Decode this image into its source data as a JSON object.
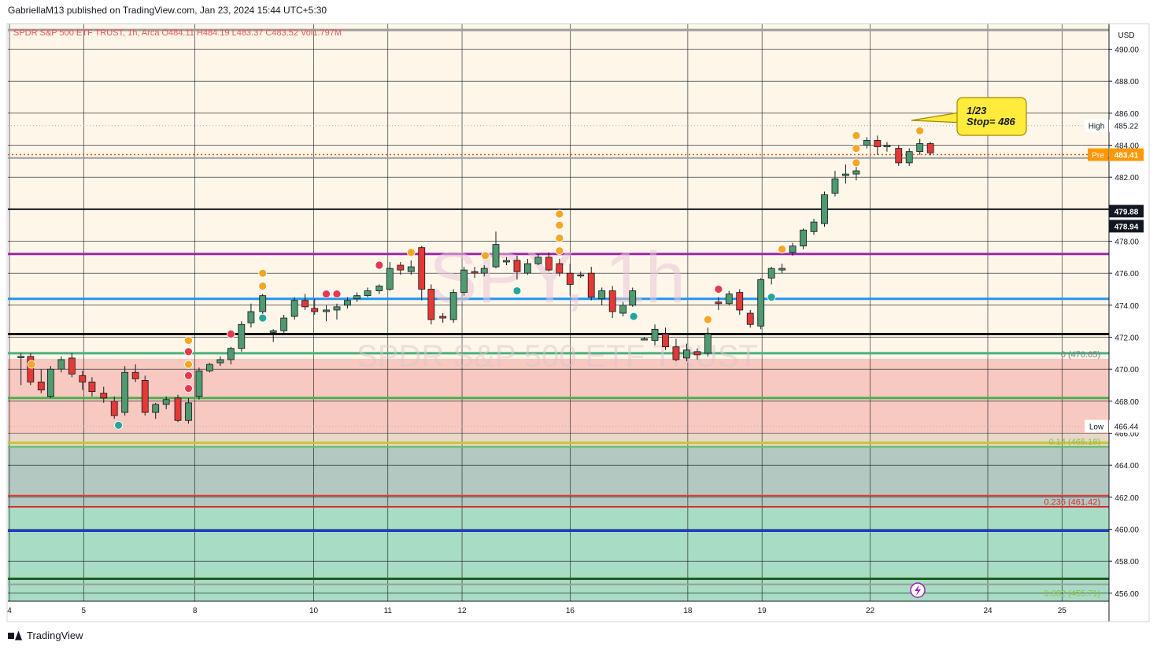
{
  "header": {
    "text": "GabriellaM13 published on TradingView.com, Jan 23, 2024 15:44 UTC+5:30"
  },
  "footer": {
    "brand": "TradingView"
  },
  "chart_data": {
    "type": "candlestick",
    "symbol_line": "SPDR S&P 500 ETF TRUST, 1h, Arca  O484.11  H484.19  L483.37  C483.52  Vol1.797M",
    "watermark_ticker": "SPY, 1h",
    "watermark_name": "SPDR S&P 500 ETF TRUST",
    "currency": "USD",
    "ylim": [
      455.5,
      491.6
    ],
    "xlim": [
      0,
      107
    ],
    "y_ticks": [
      "490.00",
      "488.00",
      "486.00",
      "484.00",
      "482.00",
      "480.00",
      "478.00",
      "476.00",
      "474.00",
      "472.00",
      "470.00",
      "468.00",
      "466.00",
      "464.00",
      "462.00",
      "460.00",
      "458.00",
      "456.00"
    ],
    "x_ticks": [
      {
        "label": "4",
        "x": 0
      },
      {
        "label": "5",
        "x": 7
      },
      {
        "label": "8",
        "x": 17.5
      },
      {
        "label": "10",
        "x": 28.7
      },
      {
        "label": "11",
        "x": 35.7
      },
      {
        "label": "12",
        "x": 42.7
      },
      {
        "label": "16",
        "x": 52.9
      },
      {
        "label": "18",
        "x": 64
      },
      {
        "label": "19",
        "x": 71
      },
      {
        "label": "22",
        "x": 81.2
      },
      {
        "label": "24",
        "x": 92.3
      },
      {
        "label": "25",
        "x": 99.3
      }
    ],
    "price_labels": [
      {
        "name": "High",
        "value": "485.22",
        "y": 485.22,
        "style": "high"
      },
      {
        "name": "Pre",
        "value": "483.41",
        "y": 483.41,
        "style": "pre"
      },
      {
        "name": "",
        "value": "479.88",
        "y": 479.88,
        "style": "dark"
      },
      {
        "name": "",
        "value": "478.94",
        "y": 478.94,
        "style": "dark"
      },
      {
        "name": "Low",
        "value": "466.44",
        "y": 466.44,
        "style": "low"
      }
    ],
    "fib_labels": [
      {
        "text": "0 (470.65)",
        "y": 470.65,
        "color": "#787b86"
      },
      {
        "text": "0.14 (465.18)",
        "y": 465.18,
        "color": "#8bc34a"
      },
      {
        "text": "0.236 (461.42)",
        "y": 461.42,
        "color": "#d32f2f"
      },
      {
        "text": "0.382 (455.71)",
        "y": 455.71,
        "color": "#8bc34a"
      }
    ],
    "callout": {
      "line1": "1/23",
      "line2": "Stop= 486"
    },
    "hlines": [
      {
        "y": 491.2,
        "color": "#9e9e9e",
        "width": 3
      },
      {
        "y": 483.2,
        "color": "#9e9e9e",
        "width": 2
      },
      {
        "y": 480.0,
        "color": "#131722",
        "width": 2
      },
      {
        "y": 477.2,
        "color": "#9c27b0",
        "width": 3
      },
      {
        "y": 474.4,
        "color": "#2196f3",
        "width": 3
      },
      {
        "y": 472.2,
        "color": "#000000",
        "width": 3
      },
      {
        "y": 471.0,
        "color": "#4caf7d",
        "width": 3
      },
      {
        "y": 468.2,
        "color": "#4caf50",
        "width": 3
      },
      {
        "y": 465.4,
        "color": "#c6c43c",
        "width": 3
      },
      {
        "y": 465.15,
        "color": "#66bb6a",
        "width": 2
      },
      {
        "y": 462.1,
        "color": "#e53935",
        "width": 2
      },
      {
        "y": 461.4,
        "color": "#d32f2f",
        "width": 2
      },
      {
        "y": 459.9,
        "color": "#1e3cc8",
        "width": 3
      },
      {
        "y": 456.9,
        "color": "#1b5e20",
        "width": 3
      },
      {
        "y": 456.55,
        "color": "#9e9e9e",
        "width": 2
      }
    ],
    "zones": [
      {
        "y1": 470.65,
        "y2": 466.0,
        "color": "#f7c9c0"
      },
      {
        "y1": 466.0,
        "y2": 465.18,
        "color": "#e8d8c8"
      },
      {
        "y1": 465.18,
        "y2": 461.42,
        "color": "#b3c8c0"
      },
      {
        "y1": 461.42,
        "y2": 455.5,
        "color": "#a8dcc4"
      }
    ],
    "candles": [
      [
        0.2,
        470.8,
        471.0,
        469.0,
        470.8
      ],
      [
        1.1,
        470.8,
        471.0,
        469.0,
        469.2
      ],
      [
        2.1,
        469.2,
        470.0,
        468.5,
        468.7
      ],
      [
        3.0,
        468.3,
        470.2,
        468.2,
        470.0
      ],
      [
        4.0,
        470.0,
        470.8,
        469.8,
        470.6
      ],
      [
        5.0,
        470.7,
        471.0,
        469.5,
        469.7
      ],
      [
        6.0,
        469.6,
        469.9,
        468.7,
        469.2
      ],
      [
        6.9,
        469.2,
        469.5,
        468.3,
        468.6
      ],
      [
        8.0,
        468.5,
        468.9,
        467.9,
        468.2
      ],
      [
        9.0,
        468.0,
        468.3,
        466.9,
        467.1
      ],
      [
        10.0,
        467.3,
        470.2,
        467.1,
        469.8
      ],
      [
        11.0,
        469.8,
        470.3,
        469.2,
        469.4
      ],
      [
        11.9,
        469.3,
        469.6,
        467.1,
        467.3
      ],
      [
        12.9,
        467.3,
        467.9,
        466.9,
        467.8
      ],
      [
        13.9,
        467.8,
        468.3,
        467.5,
        468.1
      ],
      [
        15.0,
        468.2,
        468.4,
        466.7,
        466.8
      ],
      [
        16.0,
        466.8,
        468.2,
        466.6,
        467.9
      ],
      [
        17.0,
        468.3,
        470.1,
        468.1,
        469.9
      ],
      [
        18.0,
        469.9,
        470.4,
        469.8,
        470.3
      ],
      [
        19.0,
        470.4,
        470.8,
        470.2,
        470.6
      ],
      [
        20.0,
        470.6,
        471.4,
        470.3,
        471.3
      ],
      [
        21.0,
        471.3,
        473.0,
        471.1,
        472.8
      ],
      [
        21.9,
        472.9,
        474.1,
        472.6,
        473.6
      ],
      [
        23.0,
        473.6,
        474.7,
        473.3,
        474.6
      ],
      [
        24.0,
        472.3,
        472.5,
        471.7,
        472.4
      ],
      [
        25.0,
        472.4,
        473.4,
        472.2,
        473.2
      ],
      [
        26.0,
        473.3,
        474.5,
        473.1,
        474.3
      ],
      [
        27.0,
        474.3,
        474.7,
        473.7,
        473.9
      ],
      [
        27.9,
        473.8,
        474.4,
        473.4,
        473.6
      ],
      [
        29.0,
        473.6,
        474.0,
        473.0,
        473.7
      ],
      [
        30.0,
        473.7,
        474.1,
        473.1,
        473.9
      ],
      [
        31.0,
        474.0,
        474.5,
        473.8,
        474.3
      ],
      [
        31.9,
        474.4,
        474.8,
        474.2,
        474.6
      ],
      [
        32.9,
        474.6,
        475.1,
        474.5,
        474.9
      ],
      [
        34.0,
        474.9,
        475.3,
        474.7,
        475.2
      ],
      [
        35.0,
        475.0,
        476.7,
        474.9,
        476.3
      ],
      [
        36.0,
        476.5,
        476.7,
        475.9,
        476.2
      ],
      [
        37.0,
        476.1,
        476.8,
        475.9,
        476.4
      ],
      [
        38.0,
        477.6,
        477.7,
        474.3,
        475.0
      ],
      [
        38.9,
        475.0,
        475.3,
        472.8,
        473.1
      ],
      [
        40.0,
        473.3,
        473.5,
        472.9,
        473.2
      ],
      [
        41.0,
        473.1,
        475.0,
        472.9,
        474.8
      ],
      [
        42.0,
        474.8,
        476.4,
        474.6,
        476.2
      ],
      [
        43.0,
        476.1,
        476.4,
        475.7,
        476.0
      ],
      [
        43.9,
        476.0,
        476.5,
        475.8,
        476.3
      ],
      [
        45.0,
        476.4,
        478.6,
        476.3,
        477.8
      ],
      [
        46.0,
        476.7,
        477.0,
        476.5,
        476.8
      ],
      [
        47.0,
        476.8,
        477.1,
        475.6,
        476.1
      ],
      [
        48.0,
        476.0,
        476.9,
        475.9,
        476.6
      ],
      [
        49.0,
        476.6,
        477.2,
        476.5,
        477.0
      ],
      [
        50.0,
        477.0,
        477.3,
        476.1,
        476.2
      ],
      [
        51.0,
        476.6,
        476.9,
        475.8,
        476.0
      ],
      [
        52.0,
        476.0,
        476.6,
        474.6,
        475.3
      ],
      [
        53.0,
        475.9,
        476.1,
        475.7,
        475.9
      ],
      [
        54.0,
        476.0,
        476.4,
        474.3,
        474.5
      ],
      [
        55.0,
        474.4,
        475.1,
        474.0,
        474.9
      ],
      [
        56.0,
        474.9,
        475.2,
        473.2,
        473.6
      ],
      [
        57.0,
        473.5,
        474.2,
        473.3,
        474.0
      ],
      [
        57.9,
        474.0,
        475.1,
        473.9,
        474.9
      ],
      [
        59.0,
        471.9,
        472.0,
        471.8,
        471.9
      ],
      [
        60.0,
        471.8,
        472.8,
        471.5,
        472.5
      ],
      [
        61.0,
        472.2,
        472.6,
        471.2,
        471.4
      ],
      [
        62.0,
        471.4,
        471.9,
        470.5,
        470.6
      ],
      [
        63.0,
        470.7,
        471.6,
        470.5,
        471.2
      ],
      [
        64.0,
        471.1,
        471.3,
        470.6,
        470.9
      ],
      [
        65.0,
        471.0,
        472.6,
        470.8,
        472.2
      ],
      [
        66.0,
        474.2,
        474.5,
        473.7,
        474.1
      ],
      [
        67.0,
        474.1,
        474.9,
        474.0,
        474.7
      ],
      [
        68.0,
        474.8,
        475.0,
        473.4,
        473.7
      ],
      [
        69.0,
        473.5,
        473.7,
        472.6,
        472.8
      ],
      [
        70.0,
        472.7,
        475.7,
        472.5,
        475.6
      ],
      [
        71.0,
        475.7,
        476.4,
        475.3,
        476.3
      ],
      [
        72.0,
        476.2,
        476.6,
        476.0,
        476.3
      ],
      [
        73.0,
        477.3,
        477.9,
        477.1,
        477.7
      ],
      [
        74.0,
        477.7,
        478.8,
        477.5,
        478.7
      ],
      [
        75.0,
        478.6,
        479.4,
        478.4,
        479.2
      ],
      [
        76.0,
        479.1,
        481.1,
        478.9,
        480.9
      ],
      [
        77.0,
        481.0,
        482.4,
        480.8,
        481.9
      ],
      [
        78.0,
        482.1,
        482.8,
        481.6,
        482.2
      ],
      [
        79.0,
        482.2,
        482.9,
        481.8,
        482.4
      ],
      [
        80.0,
        484.0,
        484.5,
        483.8,
        484.3
      ],
      [
        81.0,
        484.3,
        484.6,
        483.4,
        483.9
      ],
      [
        81.9,
        483.9,
        484.2,
        483.6,
        484.0
      ],
      [
        83.0,
        483.8,
        484.0,
        482.7,
        482.9
      ],
      [
        84.0,
        482.9,
        483.8,
        482.7,
        483.6
      ],
      [
        85.0,
        483.6,
        484.4,
        483.4,
        484.1
      ],
      [
        86.0,
        484.1,
        484.19,
        483.37,
        483.52
      ]
    ],
    "dots": [
      [
        1.2,
        470.3,
        "#f5a623"
      ],
      [
        9.4,
        466.5,
        "#26a69a"
      ],
      [
        16.0,
        471.8,
        "#f5a623"
      ],
      [
        16.0,
        471.1,
        "#e53950"
      ],
      [
        16.0,
        470.3,
        "#f5a623"
      ],
      [
        16.0,
        469.6,
        "#e53950"
      ],
      [
        16.0,
        468.8,
        "#e53950"
      ],
      [
        20.0,
        472.2,
        "#e53950"
      ],
      [
        23.0,
        476.0,
        "#f5a623"
      ],
      [
        23.0,
        475.2,
        "#f5a623"
      ],
      [
        23.0,
        473.2,
        "#26a69a"
      ],
      [
        29.0,
        474.7,
        "#e53950"
      ],
      [
        30.0,
        474.7,
        "#e53950"
      ],
      [
        34.0,
        476.5,
        "#e53950"
      ],
      [
        37.0,
        477.3,
        "#f5a623"
      ],
      [
        44.0,
        477.1,
        "#f5a623"
      ],
      [
        47.0,
        474.9,
        "#26a69a"
      ],
      [
        51.0,
        479.7,
        "#f5a623"
      ],
      [
        51.0,
        479.0,
        "#f5a623"
      ],
      [
        51.0,
        478.2,
        "#f5a623"
      ],
      [
        51.0,
        477.4,
        "#f5a623"
      ],
      [
        58.0,
        473.3,
        "#26a69a"
      ],
      [
        65.0,
        473.1,
        "#f5a623"
      ],
      [
        66.0,
        475.0,
        "#e53950"
      ],
      [
        71.0,
        474.5,
        "#26a69a"
      ],
      [
        72.0,
        477.5,
        "#f5a623"
      ],
      [
        79.0,
        484.6,
        "#f5a623"
      ],
      [
        79.0,
        483.8,
        "#f5a623"
      ],
      [
        79.0,
        482.9,
        "#f5a623"
      ],
      [
        85.0,
        484.9,
        "#f5a623"
      ]
    ]
  }
}
